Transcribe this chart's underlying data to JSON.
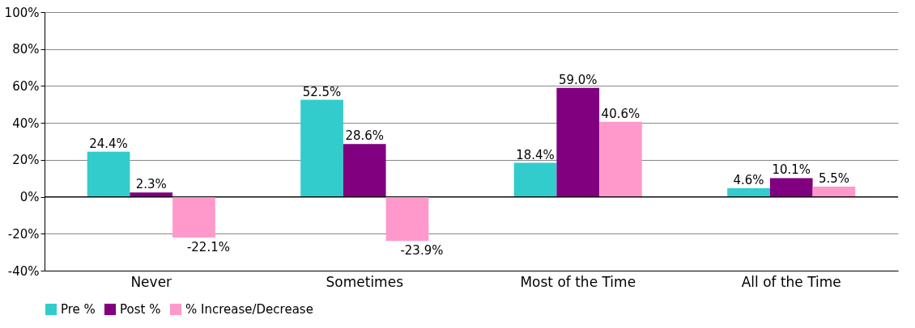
{
  "chart_data": {
    "type": "bar",
    "categories": [
      "Never",
      "Sometimes",
      "Most of the Time",
      "All of the Time"
    ],
    "series": [
      {
        "name": "Pre %",
        "color": "#33cccc",
        "values": [
          24.4,
          52.5,
          18.4,
          4.6
        ],
        "value_labels": [
          "24.4%",
          "52.5%",
          "18.4%",
          "4.6%"
        ]
      },
      {
        "name": "Post %",
        "color": "#800080",
        "values": [
          2.3,
          28.6,
          59.0,
          10.1
        ],
        "value_labels": [
          "2.3%",
          "28.6%",
          "59.0%",
          "10.1%"
        ]
      },
      {
        "name": "% Increase/Decrease",
        "color": "#ff99cc",
        "values": [
          -22.1,
          -23.9,
          40.6,
          5.5
        ],
        "value_labels": [
          "-22.1%",
          "-23.9%",
          "40.6%",
          "5.5%"
        ]
      }
    ],
    "ylim": [
      -40,
      100
    ],
    "yticks": [
      {
        "value": -40,
        "label": "-40%"
      },
      {
        "value": -20,
        "label": "-20%"
      },
      {
        "value": 0,
        "label": "0%"
      },
      {
        "value": 20,
        "label": "20%"
      },
      {
        "value": 40,
        "label": "40%"
      },
      {
        "value": 60,
        "label": "60%"
      },
      {
        "value": 80,
        "label": "80%"
      },
      {
        "value": 100,
        "label": "100%"
      }
    ],
    "grid": "y",
    "legend": "bottom"
  }
}
